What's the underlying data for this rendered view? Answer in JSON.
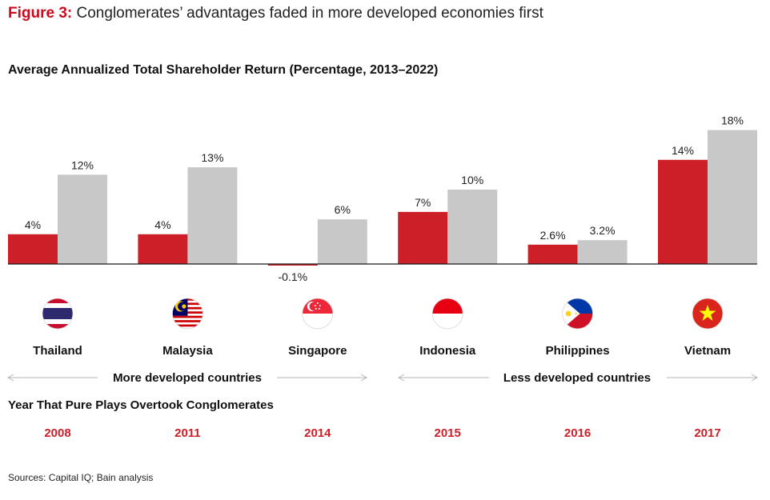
{
  "figure": {
    "label": "Figure 3:",
    "title": "Conglomerates’ advantages faded in more developed economies first"
  },
  "chart_data": {
    "type": "bar",
    "title": "Average Annualized Total Shareholder Return (Percentage, 2013–2022)",
    "categories": [
      "Thailand",
      "Malaysia",
      "Singapore",
      "Indonesia",
      "Philippines",
      "Vietnam"
    ],
    "series": [
      {
        "values": [
          4,
          4,
          -0.1,
          7,
          2.6,
          14
        ],
        "labels": [
          "4%",
          "4%",
          "-0.1%",
          "7%",
          "2.6%",
          "14%"
        ],
        "color": "#cc1f28"
      },
      {
        "values": [
          12,
          13,
          6,
          10,
          3.2,
          18
        ],
        "labels": [
          "12%",
          "13%",
          "6%",
          "10%",
          "3.2%",
          "18%"
        ],
        "color": "#c8c8c8"
      }
    ],
    "ylim": [
      0,
      18
    ]
  },
  "flags": [
    "thailand-flag",
    "malaysia-flag",
    "singapore-flag",
    "indonesia-flag",
    "philippines-flag",
    "vietnam-flag"
  ],
  "groups": {
    "more": "More developed countries",
    "less": "Less developed countries"
  },
  "overtake": {
    "title": "Year That Pure Plays Overtook Conglomerates",
    "years": [
      "2008",
      "2011",
      "2014",
      "2015",
      "2016",
      "2017"
    ]
  },
  "sources": "Sources: Capital IQ; Bain analysis",
  "colors": {
    "accent": "#cc1f28",
    "bar_gray": "#c8c8c8",
    "title_red": "#cc0a1e"
  }
}
